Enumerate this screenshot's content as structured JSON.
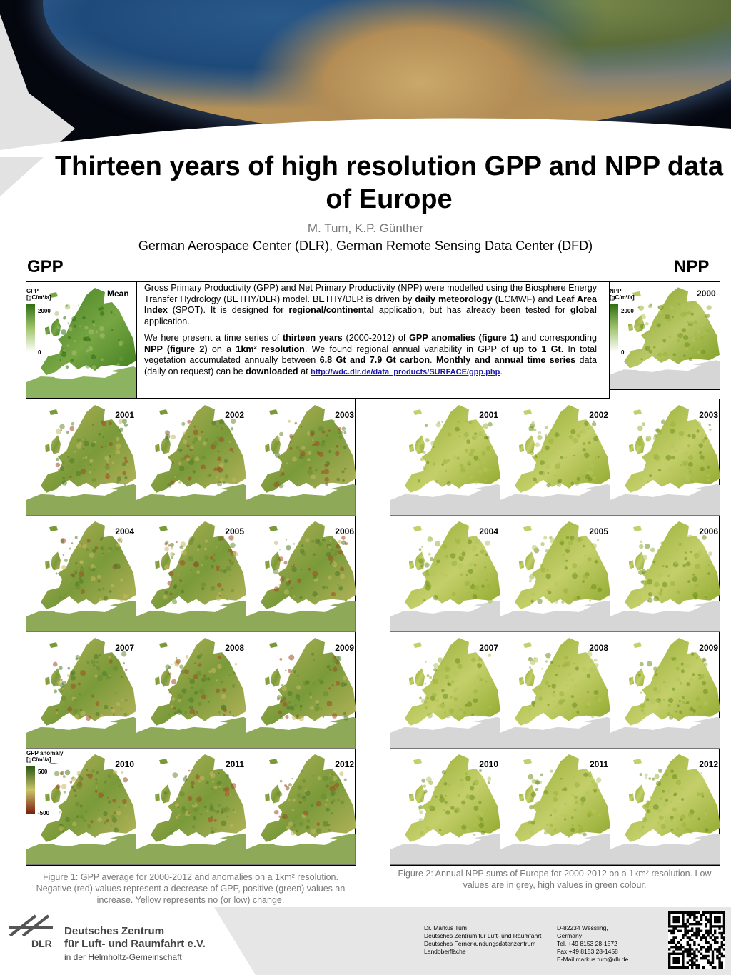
{
  "title": "Thirteen years of high resolution GPP and NPP data of Europe",
  "authors": "M. Tum, K.P. Günther",
  "affiliation": "German Aerospace Center (DLR), German Remote Sensing Data Center (DFD)",
  "sections": {
    "gpp": "GPP",
    "npp": "NPP"
  },
  "intro": {
    "p1": [
      {
        "t": "Gross Primary Productivity (GPP) and Net Primary Productivity (NPP) were modelled using the Biosphere Energy Transfer Hydrology (BETHY/DLR) model. BETHY/DLR is driven by ",
        "b": false
      },
      {
        "t": "daily meteorology",
        "b": true
      },
      {
        "t": " (ECMWF) and ",
        "b": false
      },
      {
        "t": "Leaf Area Index",
        "b": true
      },
      {
        "t": " (SPOT). It is designed for ",
        "b": false
      },
      {
        "t": "regional/continental",
        "b": true
      },
      {
        "t": " application, but has already been tested for ",
        "b": false
      },
      {
        "t": "global",
        "b": true
      },
      {
        "t": " application.",
        "b": false
      }
    ],
    "p2": [
      {
        "t": "We here present a time series of ",
        "b": false
      },
      {
        "t": "thirteen years",
        "b": true
      },
      {
        "t": " (2000-2012) of ",
        "b": false
      },
      {
        "t": "GPP anomalies (figure 1)",
        "b": true
      },
      {
        "t": " and corresponding ",
        "b": false
      },
      {
        "t": "NPP (figure 2)",
        "b": true
      },
      {
        "t": " on a ",
        "b": false
      },
      {
        "t": "1km² resolution",
        "b": true
      },
      {
        "t": ". We found regional annual variability in GPP of ",
        "b": false
      },
      {
        "t": "up to 1 Gt",
        "b": true
      },
      {
        "t": ". In total vegetation accumulated annually between ",
        "b": false
      },
      {
        "t": "6.8 Gt and 7.9 Gt carbon",
        "b": true
      },
      {
        "t": ". ",
        "b": false
      },
      {
        "t": "Monthly and annual time series",
        "b": true
      },
      {
        "t": " data (daily on request) can be ",
        "b": false
      },
      {
        "t": "downloaded",
        "b": true
      },
      {
        "t": " at ",
        "b": false
      }
    ],
    "link": "http://wdc.dlr.de/data_products/SURFACE/gpp.php",
    "link_end": "."
  },
  "gpp_mean": {
    "label": "Mean",
    "legend_title": "GPP\n[gC/m²/a]",
    "legend_max": "2000",
    "legend_min": "0"
  },
  "npp_mean": {
    "label": "2000",
    "legend_title": "NPP\n[gC/m²/a]",
    "legend_max": "2000",
    "legend_min": "0"
  },
  "gpp_anomaly_legend": {
    "title": "GPP anomaly\n[gC/m²/a]",
    "max": "500",
    "min": "-500"
  },
  "gpp_years": [
    "2001",
    "2002",
    "2003",
    "2004",
    "2005",
    "2006",
    "2007",
    "2008",
    "2009",
    "2010",
    "2011",
    "2012"
  ],
  "npp_years": [
    "2001",
    "2002",
    "2003",
    "2004",
    "2005",
    "2006",
    "2007",
    "2008",
    "2009",
    "2010",
    "2011",
    "2012"
  ],
  "captions": {
    "fig1": "Figure 1: GPP average for 2000-2012 and anomalies on a 1km² resolution. Negative (red) values represent a decrease of GPP, positive (green) values an increase. Yellow represents no (or low) change.",
    "fig2": "Figure 2: Annual NPP sums of Europe for 2000-2012 on a 1km² resolution. Low values are in grey, high values in green colour."
  },
  "footer": {
    "org_line1": "Deutsches Zentrum",
    "org_line2": "für Luft- und Raumfahrt e.V.",
    "org_sub": "in der Helmholtz-Gemeinschaft",
    "logo_text": "DLR",
    "contact_left": [
      "Dr. Markus Tum",
      "Deutsches Zentrum für Luft- und Raumfahrt",
      "Deutsches Fernerkundungsdatenzentrum",
      "Landoberfläche"
    ],
    "contact_right": [
      "D-82234 Wessling,",
      "Germany",
      "Tel.     +49 8153 28-1572",
      "Fax      +49 8153 28-1458",
      "E-Mail  markus.tum@dlr.de"
    ]
  },
  "colors": {
    "gpp_green": "#3d7a1e",
    "gpp_yellow": "#c9c46a",
    "gpp_red": "#8a2a10",
    "npp_green": "#8aa82a",
    "npp_light": "#d8dca0",
    "sea": "#ffffff",
    "nodata": "#d6d6d6"
  }
}
